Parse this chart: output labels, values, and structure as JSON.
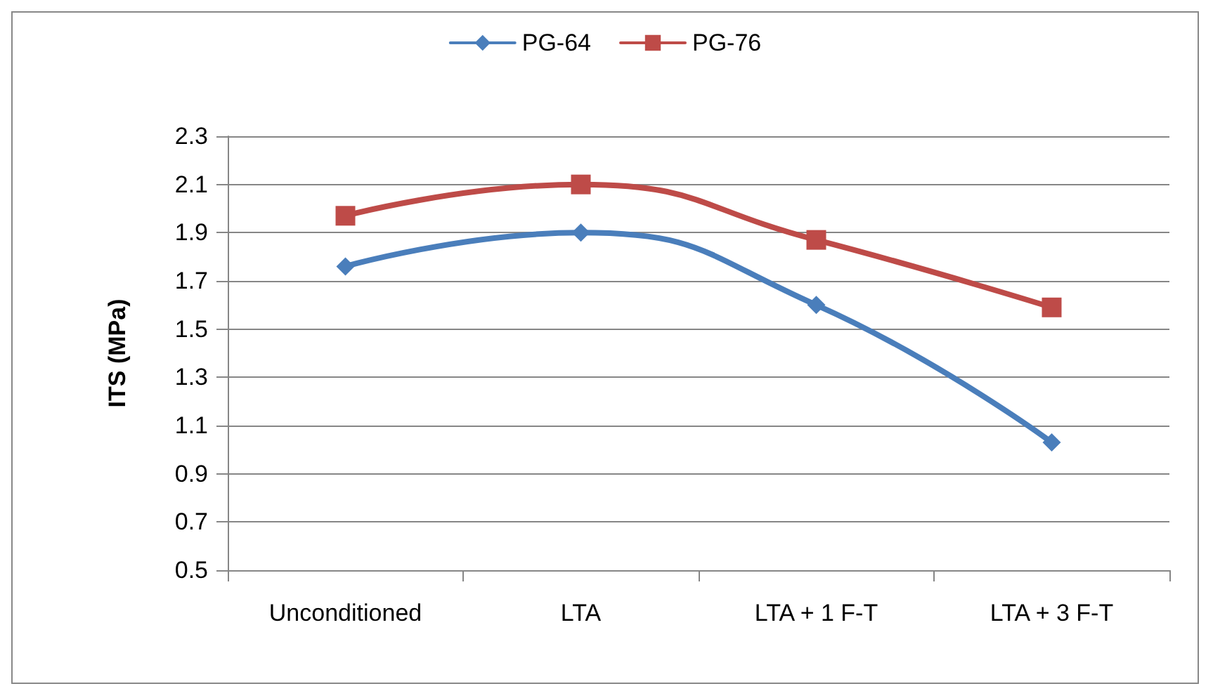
{
  "chart_data": {
    "type": "line",
    "ylabel": "ITS (MPa)",
    "categories": [
      "Unconditioned",
      "LTA",
      "LTA + 1 F-T",
      "LTA + 3 F-T"
    ],
    "series": [
      {
        "name": "PG-64",
        "color": "#4a7ebb",
        "marker": "diamond",
        "values": [
          1.76,
          1.9,
          1.6,
          1.03
        ]
      },
      {
        "name": "PG-76",
        "color": "#be4b48",
        "marker": "square",
        "values": [
          1.97,
          2.1,
          1.87,
          1.59
        ]
      }
    ],
    "ylim": [
      0.5,
      2.3
    ],
    "yticks": [
      0.5,
      0.7,
      0.9,
      1.1,
      1.3,
      1.5,
      1.7,
      1.9,
      2.1,
      2.3
    ],
    "grid": "y",
    "legend": "top",
    "line_style": "solid"
  }
}
